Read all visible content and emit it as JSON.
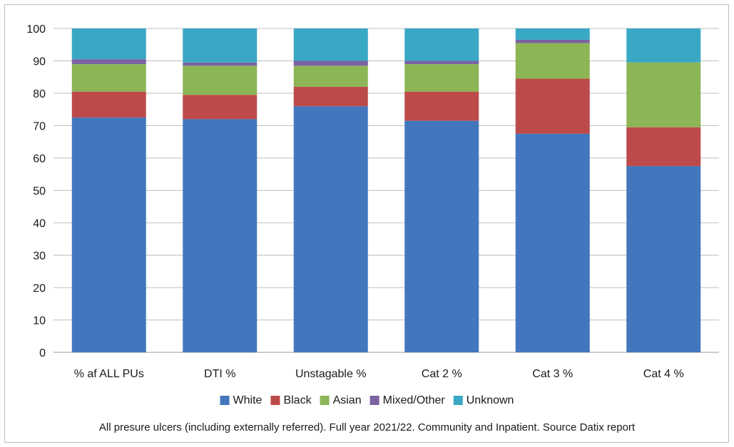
{
  "chart_data": {
    "type": "bar",
    "stacked": true,
    "categories": [
      "% af ALL PUs",
      "DTI %",
      "Unstagable %",
      "Cat 2 %",
      "Cat 3 %",
      "Cat 4 %"
    ],
    "series": [
      {
        "name": "White",
        "color": "#4277bd",
        "values": [
          72.5,
          72.0,
          76.0,
          71.5,
          67.5,
          57.5
        ]
      },
      {
        "name": "Black",
        "color": "#bd4a4a",
        "values": [
          8.0,
          7.5,
          6.0,
          9.0,
          17.0,
          12.0
        ]
      },
      {
        "name": "Asian",
        "color": "#8cb556",
        "values": [
          8.5,
          9.0,
          6.5,
          8.5,
          11.0,
          20.0
        ]
      },
      {
        "name": "Mixed/Other",
        "color": "#7b62a3",
        "values": [
          1.5,
          1.0,
          1.5,
          1.0,
          1.0,
          0.0
        ]
      },
      {
        "name": "Unknown",
        "color": "#39a8c4",
        "values": [
          9.5,
          10.5,
          10.0,
          10.0,
          3.5,
          10.5
        ]
      }
    ],
    "ylim": [
      0,
      100
    ],
    "yticks": [
      0,
      10,
      20,
      30,
      40,
      50,
      60,
      70,
      80,
      90,
      100
    ],
    "grid": true,
    "legend_position": "bottom",
    "caption": "All presure ulcers (including externally referred). Full year 2021/22. Community and Inpatient. Source Datix report"
  }
}
